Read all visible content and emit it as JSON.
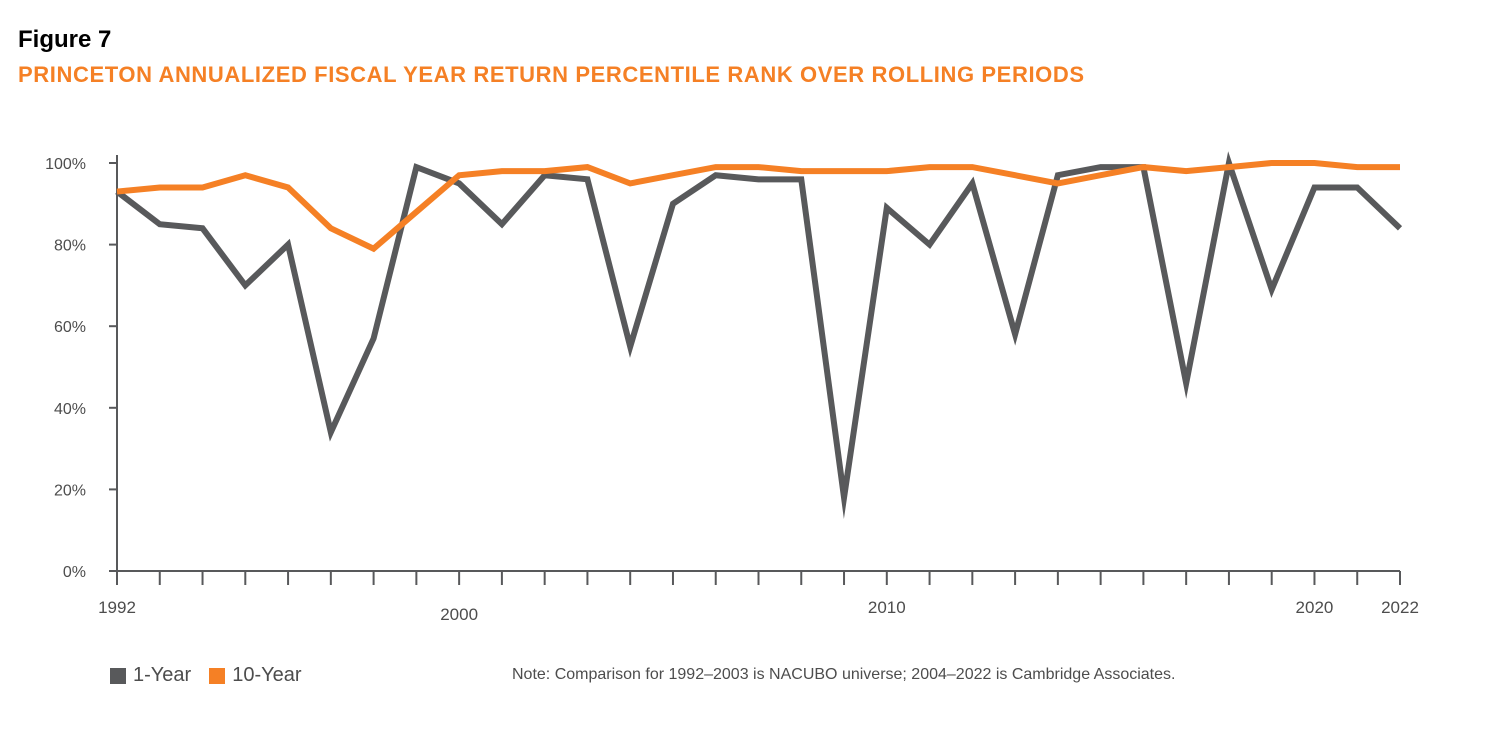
{
  "figure_label": "Figure 7",
  "title": "PRINCETON ANNUALIZED FISCAL YEAR RETURN PERCENTILE RANK OVER ROLLING PERIODS",
  "note": "Note: Comparison for 1992–2003 is NACUBO universe; 2004–2022 is Cambridge Associates.",
  "chart_data": {
    "type": "line",
    "title": "PRINCETON ANNUALIZED FISCAL YEAR RETURN PERCENTILE RANK OVER ROLLING PERIODS",
    "xlabel": "",
    "ylabel": "",
    "x": [
      1992,
      1993,
      1994,
      1995,
      1996,
      1997,
      1998,
      1999,
      2000,
      2001,
      2002,
      2003,
      2004,
      2005,
      2006,
      2007,
      2008,
      2009,
      2010,
      2011,
      2012,
      2013,
      2014,
      2015,
      2016,
      2017,
      2018,
      2019,
      2020,
      2021,
      2022
    ],
    "xlim": [
      1992,
      2022
    ],
    "ylim": [
      0,
      100
    ],
    "x_tick_labels": [
      {
        "value": 1992,
        "label": "1992"
      },
      {
        "value": 2000,
        "label": "2000"
      },
      {
        "value": 2010,
        "label": "2010"
      },
      {
        "value": 2020,
        "label": "2020"
      },
      {
        "value": 2022,
        "label": "2022"
      }
    ],
    "y_ticks": [
      0,
      20,
      40,
      60,
      80,
      100
    ],
    "y_tick_labels": [
      "0%",
      "20%",
      "40%",
      "60%",
      "80%",
      "100%"
    ],
    "grid": false,
    "legend_position": "bottom-left",
    "series": [
      {
        "name": "1-Year",
        "color": "#58595b",
        "values": [
          93,
          85,
          84,
          70,
          80,
          34,
          57,
          99,
          95,
          85,
          97,
          96,
          55,
          90,
          97,
          96,
          96,
          18,
          89,
          80,
          95,
          58,
          97,
          99,
          99,
          46,
          100,
          69,
          94,
          94,
          84
        ]
      },
      {
        "name": "10-Year",
        "color": "#f58025",
        "values": [
          93,
          94,
          94,
          97,
          94,
          84,
          79,
          88,
          97,
          98,
          98,
          99,
          95,
          97,
          99,
          99,
          98,
          98,
          98,
          99,
          99,
          97,
          95,
          97,
          99,
          98,
          99,
          100,
          100,
          99,
          99
        ]
      }
    ]
  }
}
